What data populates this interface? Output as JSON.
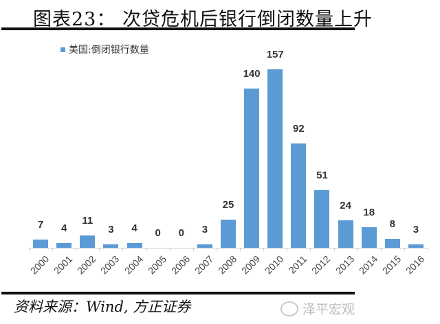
{
  "header": {
    "title": "图表23： 次贷危机后银行倒闭数量上升"
  },
  "legend": {
    "label": "美国:倒闭银行数量",
    "color": "#5b9bd5"
  },
  "footer": {
    "source": "资料来源：Wind, 方正证券",
    "watermark": "泽平宏观"
  },
  "chart_data": {
    "type": "bar",
    "title": "图表23： 次贷危机后银行倒闭数量上升",
    "xlabel": "",
    "ylabel": "",
    "categories": [
      "2000",
      "2001",
      "2002",
      "2003",
      "2004",
      "2005",
      "2006",
      "2007",
      "2008",
      "2009",
      "2010",
      "2011",
      "2012",
      "2013",
      "2014",
      "2015",
      "2016"
    ],
    "series": [
      {
        "name": "美国:倒闭银行数量",
        "color": "#5b9bd5",
        "values": [
          7,
          4,
          11,
          3,
          4,
          0,
          0,
          3,
          25,
          140,
          157,
          92,
          51,
          24,
          18,
          8,
          3
        ]
      }
    ],
    "data_labels": true,
    "grid": false,
    "y_axis_visible": false,
    "legend_position": "top-left",
    "ylim": [
      0,
      160
    ]
  }
}
